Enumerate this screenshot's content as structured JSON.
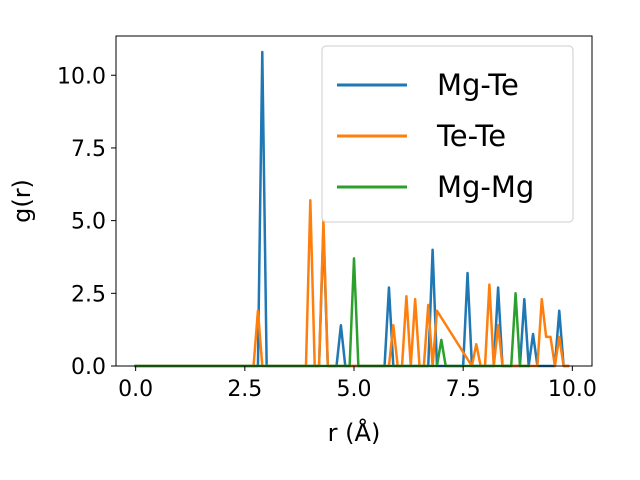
{
  "chart_data": {
    "type": "line",
    "xlabel": "r (Å)",
    "ylabel": "g(r)",
    "xlim": [
      -0.45,
      10.45
    ],
    "ylim": [
      0.0,
      11.35
    ],
    "xticks": [
      0.0,
      2.5,
      5.0,
      7.5,
      10.0
    ],
    "yticks": [
      0.0,
      2.5,
      5.0,
      7.5,
      10.0
    ],
    "xtick_labels": [
      "0.0",
      "2.5",
      "5.0",
      "7.5",
      "10.0"
    ],
    "ytick_labels": [
      "0.0",
      "2.5",
      "5.0",
      "7.5",
      "10.0"
    ],
    "grid": false,
    "legend_position": "upper right",
    "series": [
      {
        "name": "Mg-Te",
        "color": "#1f77b4",
        "x": [
          0.0,
          2.8,
          2.9,
          3.0,
          4.2,
          4.3,
          4.4,
          4.5,
          4.6,
          4.7,
          4.8,
          5.7,
          5.8,
          5.9,
          6.7,
          6.8,
          6.9,
          7.5,
          7.6,
          7.7,
          8.2,
          8.3,
          8.4,
          8.8,
          8.9,
          9.0,
          9.1,
          9.2,
          9.6,
          9.7,
          9.8,
          9.9
        ],
        "y": [
          0.0,
          0.0,
          10.8,
          0.0,
          0.0,
          4.7,
          0.0,
          0.0,
          0.0,
          1.4,
          0.0,
          0.0,
          2.7,
          0.0,
          0.0,
          4.0,
          0.0,
          0.0,
          3.2,
          0.0,
          0.0,
          2.7,
          0.0,
          0.0,
          2.3,
          0.0,
          1.1,
          0.0,
          0.0,
          1.9,
          0.0,
          0.0
        ]
      },
      {
        "name": "Te-Te",
        "color": "#ff7f0e",
        "x": [
          0.0,
          2.7,
          2.8,
          2.9,
          3.9,
          4.0,
          4.1,
          4.2,
          4.3,
          4.4,
          5.8,
          5.9,
          6.0,
          6.1,
          6.2,
          6.3,
          6.4,
          6.5,
          6.6,
          6.7,
          6.8,
          6.9,
          7.7,
          7.8,
          7.9,
          8.0,
          8.1,
          8.2,
          8.3,
          8.4,
          8.5,
          9.2,
          9.3,
          9.4,
          9.5,
          9.6,
          9.7,
          9.8,
          9.9
        ],
        "y": [
          0.0,
          0.0,
          1.9,
          0.0,
          0.0,
          5.7,
          0.0,
          0.0,
          5.0,
          0.0,
          0.0,
          1.4,
          0.0,
          0.0,
          2.4,
          0.0,
          2.3,
          0.0,
          0.0,
          2.1,
          0.0,
          1.9,
          0.0,
          0.75,
          0.0,
          0.0,
          2.8,
          0.0,
          1.4,
          0.0,
          0.0,
          0.0,
          2.3,
          1.0,
          1.0,
          0.0,
          1.0,
          0.0,
          0.0
        ]
      },
      {
        "name": "Mg-Mg",
        "color": "#2ca02c",
        "x": [
          0.0,
          4.9,
          5.0,
          5.1,
          6.9,
          7.0,
          7.1,
          8.6,
          8.7,
          8.8,
          8.9,
          9.0
        ],
        "y": [
          0.0,
          0.0,
          3.7,
          0.0,
          0.0,
          0.9,
          0.0,
          0.0,
          2.5,
          0.0,
          0.0,
          0.0
        ]
      }
    ]
  }
}
